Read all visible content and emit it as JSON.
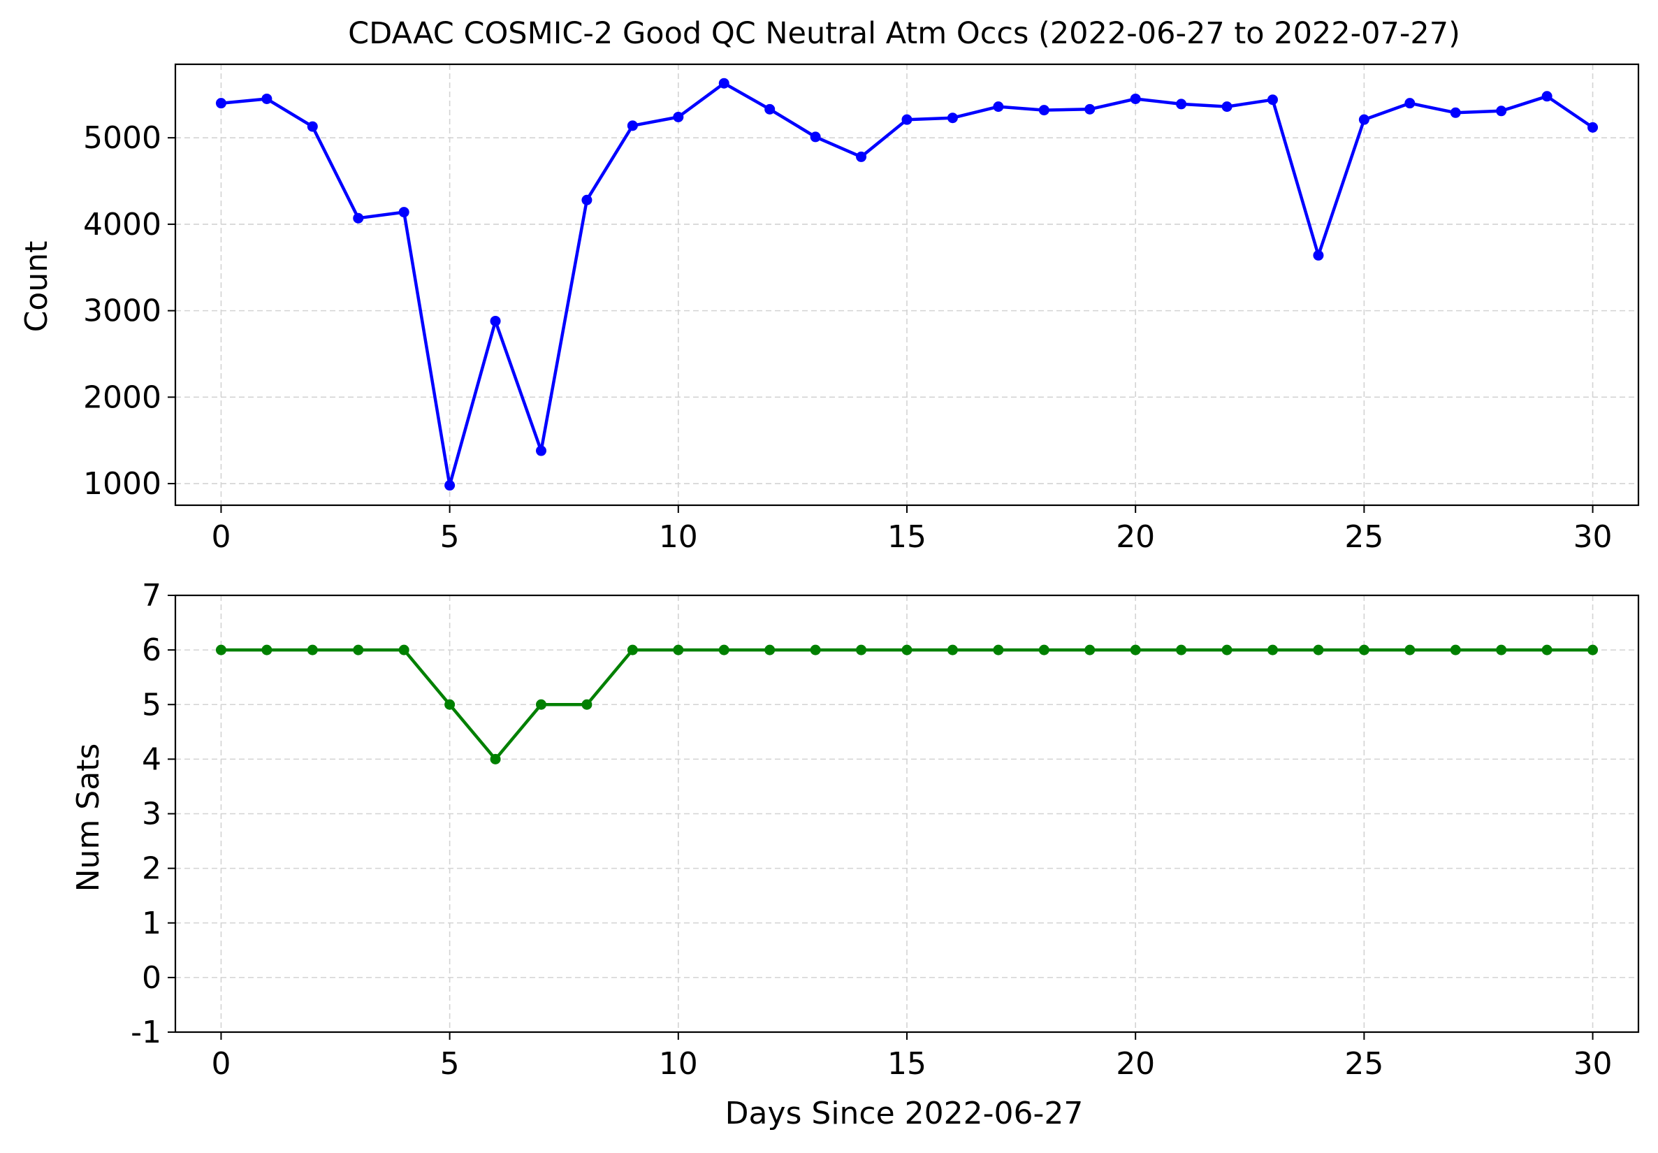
{
  "chart_data": [
    {
      "type": "line",
      "title": "CDAAC COSMIC-2 Good QC Neutral Atm Occs (2022-06-27 to 2022-07-27)",
      "xlabel": "",
      "ylabel": "Count",
      "xlim": [
        -1,
        31
      ],
      "ylim": [
        750,
        5850
      ],
      "xticks": [
        0,
        5,
        10,
        15,
        20,
        25,
        30
      ],
      "yticks": [
        1000,
        2000,
        3000,
        4000,
        5000
      ],
      "grid": true,
      "color": "#0000ff",
      "series": [
        {
          "x": [
            0,
            1,
            2,
            3,
            4,
            5,
            6,
            7,
            8,
            9,
            10,
            11,
            12,
            13,
            14,
            15,
            16,
            17,
            18,
            19,
            20,
            21,
            22,
            23,
            24,
            25,
            26,
            27,
            28,
            29,
            30
          ],
          "values": [
            5400,
            5450,
            5130,
            4070,
            4140,
            980,
            2880,
            1380,
            4280,
            5140,
            5240,
            5630,
            5330,
            5010,
            4780,
            5210,
            5230,
            5360,
            5320,
            5330,
            5450,
            5390,
            5360,
            5440,
            3640,
            5210,
            5400,
            5290,
            5310,
            5480,
            5120
          ]
        }
      ]
    },
    {
      "type": "line",
      "title": "",
      "xlabel": "Days Since 2022-06-27",
      "ylabel": "Num Sats",
      "xlim": [
        -1,
        31
      ],
      "ylim": [
        -1,
        7
      ],
      "xticks": [
        0,
        5,
        10,
        15,
        20,
        25,
        30
      ],
      "yticks": [
        -1,
        0,
        1,
        2,
        3,
        4,
        5,
        6,
        7
      ],
      "grid": true,
      "color": "#008000",
      "series": [
        {
          "x": [
            0,
            1,
            2,
            3,
            4,
            5,
            6,
            7,
            8,
            9,
            10,
            11,
            12,
            13,
            14,
            15,
            16,
            17,
            18,
            19,
            20,
            21,
            22,
            23,
            24,
            25,
            26,
            27,
            28,
            29,
            30
          ],
          "values": [
            6,
            6,
            6,
            6,
            6,
            5,
            4,
            5,
            5,
            6,
            6,
            6,
            6,
            6,
            6,
            6,
            6,
            6,
            6,
            6,
            6,
            6,
            6,
            6,
            6,
            6,
            6,
            6,
            6,
            6,
            6
          ]
        }
      ]
    }
  ]
}
